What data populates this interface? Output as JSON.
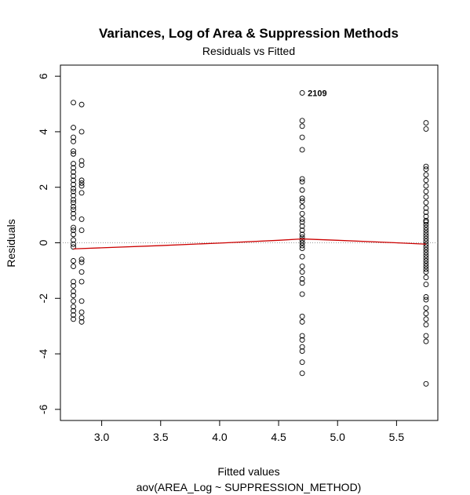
{
  "chart_data": {
    "type": "scatter",
    "title": "Variances, Log of Area & Suppression Methods",
    "subtitle": "Residuals vs Fitted",
    "xlabel": "Fitted values",
    "xlabel_sub": "aov(AREA_Log ~ SUPPRESSION_METHOD)",
    "ylabel": "Residuals",
    "xlim": [
      2.65,
      5.85
    ],
    "ylim": [
      -6.4,
      6.4
    ],
    "x_ticks": [
      3.0,
      3.5,
      4.0,
      4.5,
      5.0,
      5.5
    ],
    "x_tick_labels": [
      "3.0",
      "3.5",
      "4.0",
      "4.5",
      "5.0",
      "5.5"
    ],
    "y_ticks": [
      -6,
      -4,
      -2,
      0,
      2,
      4,
      6
    ],
    "y_tick_labels": [
      "-6",
      "-4",
      "-2",
      "0",
      "2",
      "4",
      "6"
    ],
    "reference_line": 0,
    "annotations": [
      {
        "x": 4.7,
        "y": 5.4,
        "text": "2109"
      }
    ],
    "groups": [
      {
        "x": 2.76,
        "residuals": [
          5.05,
          4.15,
          3.8,
          3.65,
          3.3,
          3.2,
          2.85,
          2.7,
          2.55,
          2.4,
          2.25,
          2.1,
          1.95,
          1.85,
          1.7,
          1.55,
          1.45,
          1.3,
          1.2,
          1.05,
          0.9,
          0.55,
          0.45,
          0.3,
          0.1,
          -0.05,
          -0.15,
          -0.65,
          -0.85,
          -1.4,
          -1.55,
          -1.75,
          -1.9,
          -2.1,
          -2.3,
          -2.45,
          -2.6,
          -2.75
        ]
      },
      {
        "x": 2.83,
        "residuals": [
          4.98,
          4.0,
          2.95,
          2.8,
          2.25,
          2.15,
          2.05,
          1.8,
          0.85,
          0.45,
          -0.6,
          -0.7,
          -1.05,
          -1.4,
          -2.1,
          -2.5,
          -2.7,
          -2.85
        ]
      },
      {
        "x": 4.7,
        "residuals": [
          5.4,
          4.4,
          4.2,
          3.8,
          3.35,
          2.3,
          2.2,
          1.9,
          1.6,
          1.5,
          1.3,
          1.05,
          0.85,
          0.75,
          0.6,
          0.45,
          0.3,
          0.2,
          0.1,
          0.0,
          -0.1,
          -0.2,
          -0.5,
          -0.85,
          -1.05,
          -1.3,
          -1.45,
          -1.85,
          -2.65,
          -2.85,
          -3.35,
          -3.5,
          -3.75,
          -3.9,
          -4.3,
          -4.7
        ]
      },
      {
        "x": 5.75,
        "residuals": [
          4.32,
          4.1,
          2.75,
          2.65,
          2.45,
          2.25,
          2.05,
          1.85,
          1.65,
          1.45,
          1.25,
          1.1,
          0.95,
          0.8,
          0.75,
          0.65,
          0.55,
          0.45,
          0.35,
          0.25,
          0.15,
          0.05,
          -0.05,
          -0.15,
          -0.25,
          -0.35,
          -0.45,
          -0.55,
          -0.65,
          -0.75,
          -0.85,
          -0.95,
          -1.05,
          -1.25,
          -1.5,
          -1.95,
          -2.05,
          -2.35,
          -2.55,
          -2.75,
          -2.95,
          -3.35,
          -3.55,
          -5.08
        ]
      }
    ],
    "smooth_line": {
      "color": "#cc0000",
      "x": [
        2.76,
        3.0,
        3.5,
        4.0,
        4.5,
        4.7,
        5.0,
        5.5,
        5.75
      ],
      "y": [
        -0.22,
        -0.18,
        -0.1,
        -0.01,
        0.09,
        0.14,
        0.09,
        0.0,
        -0.05
      ]
    }
  }
}
